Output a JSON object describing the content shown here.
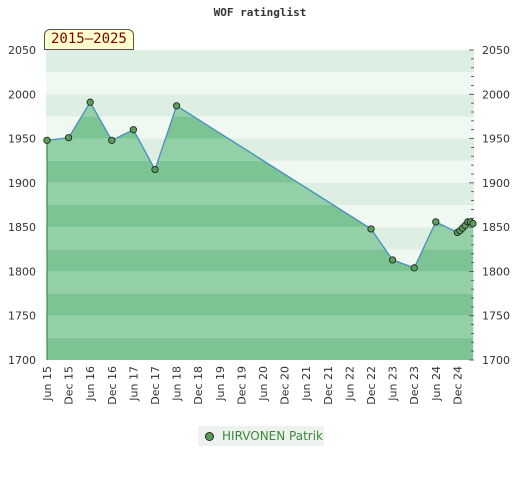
{
  "chart_data": {
    "type": "area",
    "title": "WOF ratinglist",
    "period": "2015–2025",
    "x_tick_labels": [
      "Jun 15",
      "Dec 15",
      "Jun 16",
      "Dec 16",
      "Jun 17",
      "Dec 17",
      "Jun 18",
      "Dec 18",
      "Jun 19",
      "Dec 19",
      "Jun 20",
      "Dec 20",
      "Jun 21",
      "Dec 21",
      "Jun 22",
      "Dec 22",
      "Jun 23",
      "Dec 23",
      "Jun 24",
      "Dec 24"
    ],
    "y_ticks": [
      1700,
      1750,
      1800,
      1850,
      1900,
      1950,
      2000,
      2050
    ],
    "ylim": [
      1700,
      2050
    ],
    "series": [
      {
        "name": "HIRVONEN Patrik",
        "color": "#5a9e5a",
        "points": [
          {
            "x": "Jun 15",
            "y": 1948
          },
          {
            "x": "Dec 15",
            "y": 1951
          },
          {
            "x": "Jun 16",
            "y": 1991
          },
          {
            "x": "Dec 16",
            "y": 1948
          },
          {
            "x": "Jun 17",
            "y": 1960
          },
          {
            "x": "Dec 17",
            "y": 1915
          },
          {
            "x": "Jun 18",
            "y": 1987
          },
          {
            "x": "Dec 22",
            "y": 1848
          },
          {
            "x": "Jun 23",
            "y": 1813
          },
          {
            "x": "Dec 23",
            "y": 1804
          },
          {
            "x": "Jun 24",
            "y": 1856
          },
          {
            "x": "Dec 24",
            "y": 1844
          },
          {
            "x": "Dec 24",
            "y": 1846
          },
          {
            "x": "Dec 24",
            "y": 1849
          },
          {
            "x": "Dec 24",
            "y": 1852
          },
          {
            "x": "Dec 24",
            "y": 1856
          },
          {
            "x": "Dec 24",
            "y": 1856
          },
          {
            "x": "Dec 24",
            "y": 1854
          }
        ]
      }
    ]
  }
}
